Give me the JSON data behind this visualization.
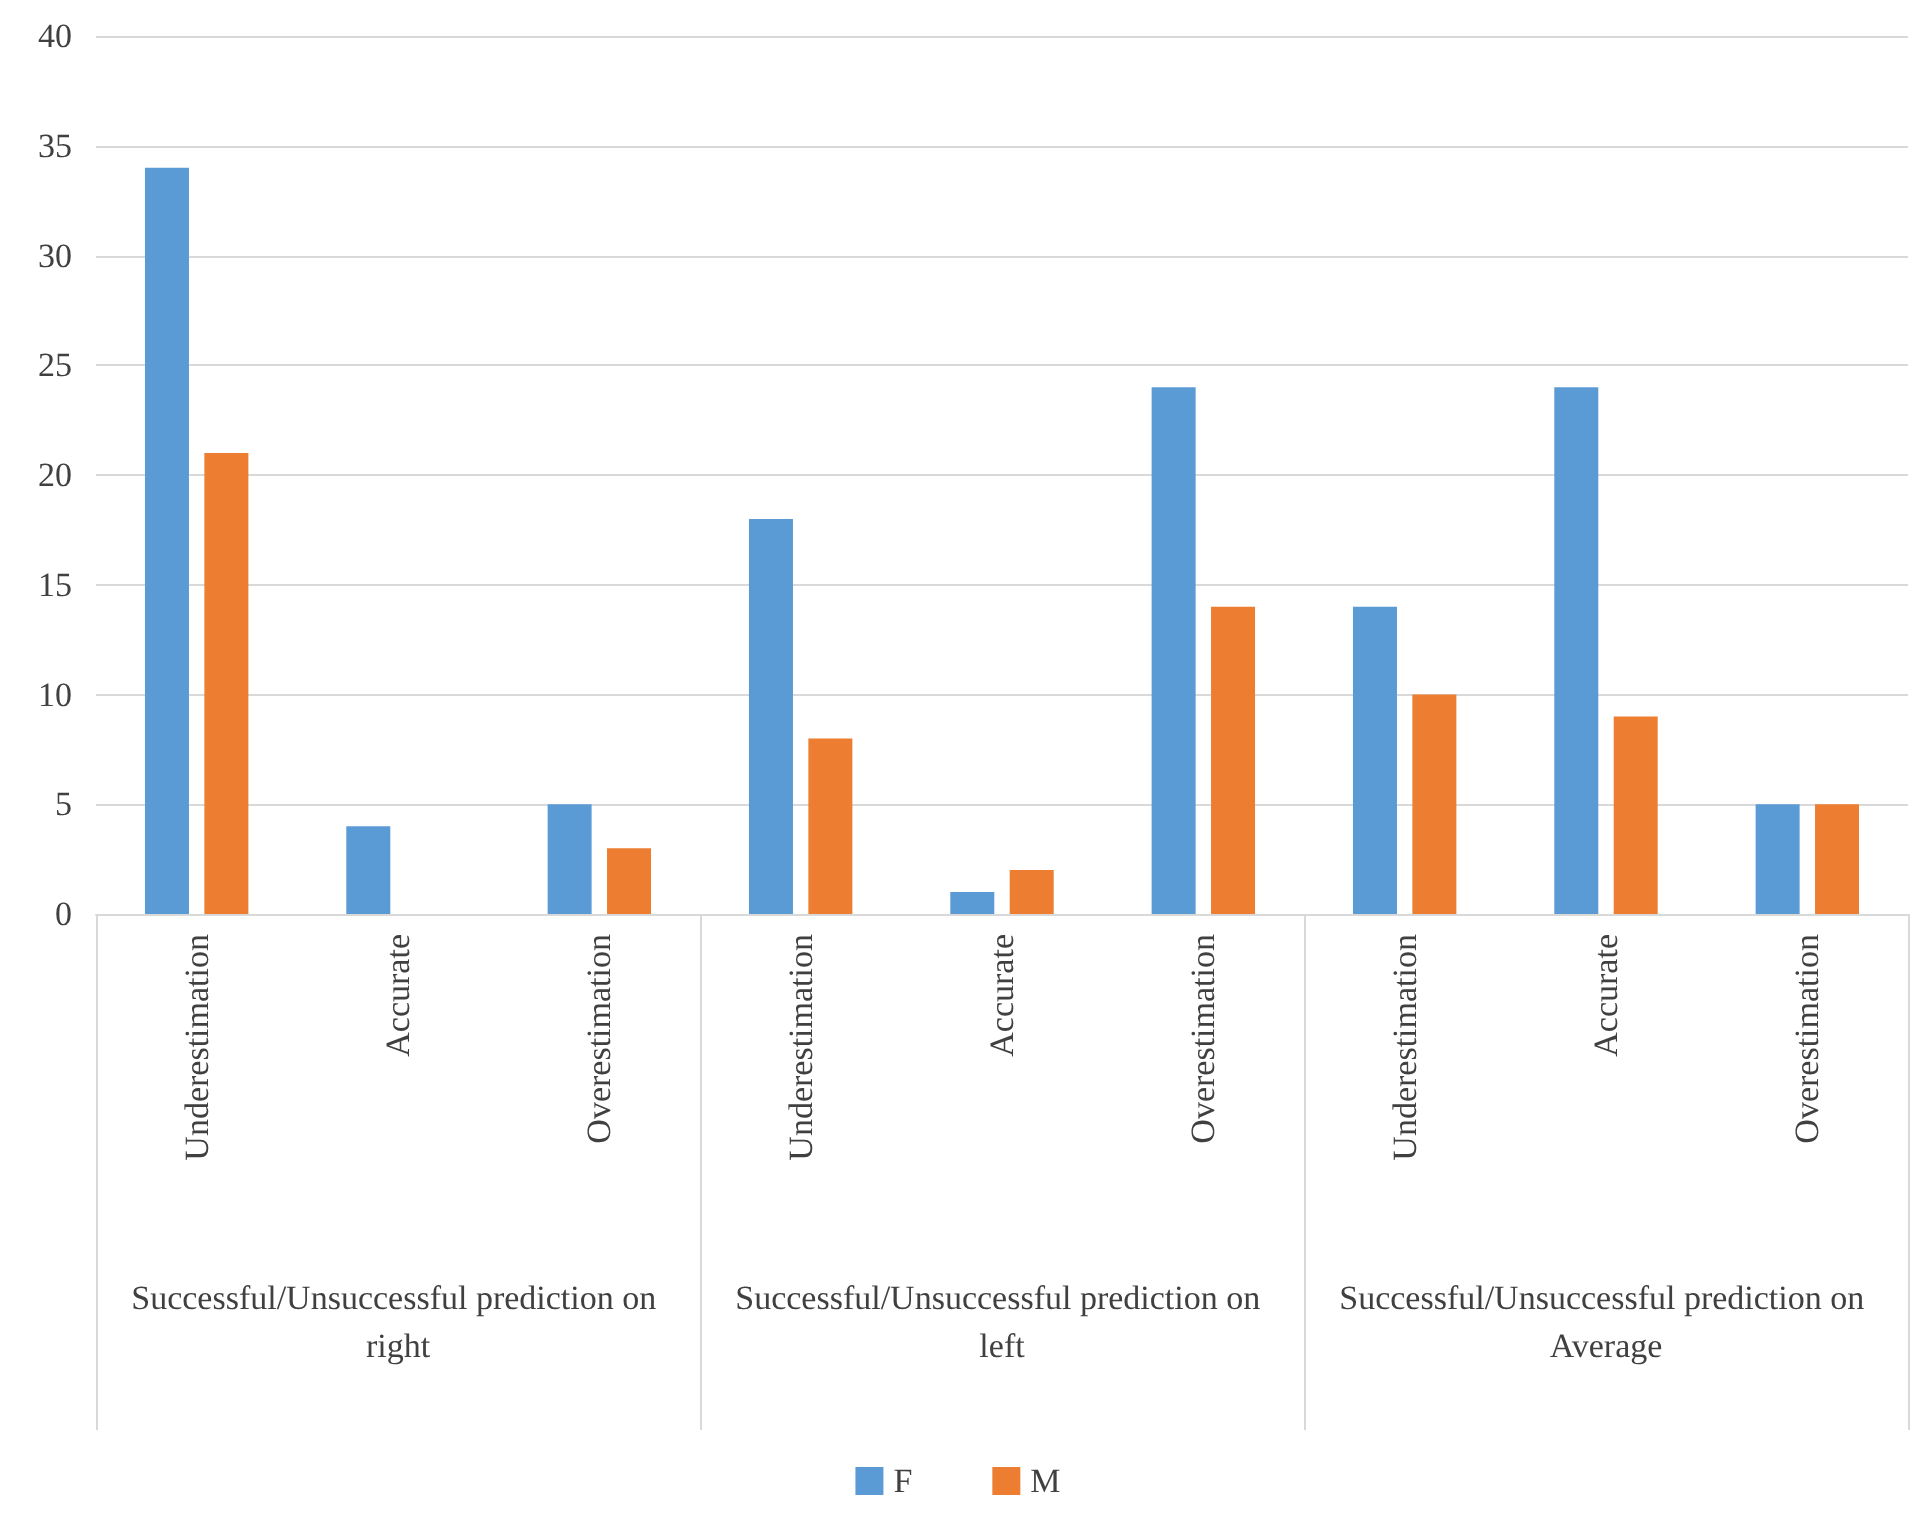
{
  "chart_data": {
    "type": "bar",
    "categories": [
      "Underestimation",
      "Accurate",
      "Overestimation",
      "Underestimation",
      "Accurate",
      "Overestimation",
      "Underestimation",
      "Accurate",
      "Overestimation"
    ],
    "series": [
      {
        "name": "F",
        "color": "#5b9bd5",
        "values": [
          34,
          4,
          5,
          18,
          1,
          24,
          14,
          24,
          5
        ]
      },
      {
        "name": "M",
        "color": "#ed7d31",
        "values": [
          21,
          0,
          3,
          8,
          2,
          14,
          10,
          9,
          5
        ]
      }
    ],
    "annotations": [
      "Successful/Unsuccessful prediction on right",
      "Successful/Unsuccessful prediction on left",
      "Successful/Unsuccessful prediction on Average"
    ],
    "ylim": [
      0,
      40
    ],
    "yticks": [
      0,
      5,
      10,
      15,
      20,
      25,
      30,
      35,
      40
    ],
    "grid": "y",
    "legend": "bottom"
  }
}
